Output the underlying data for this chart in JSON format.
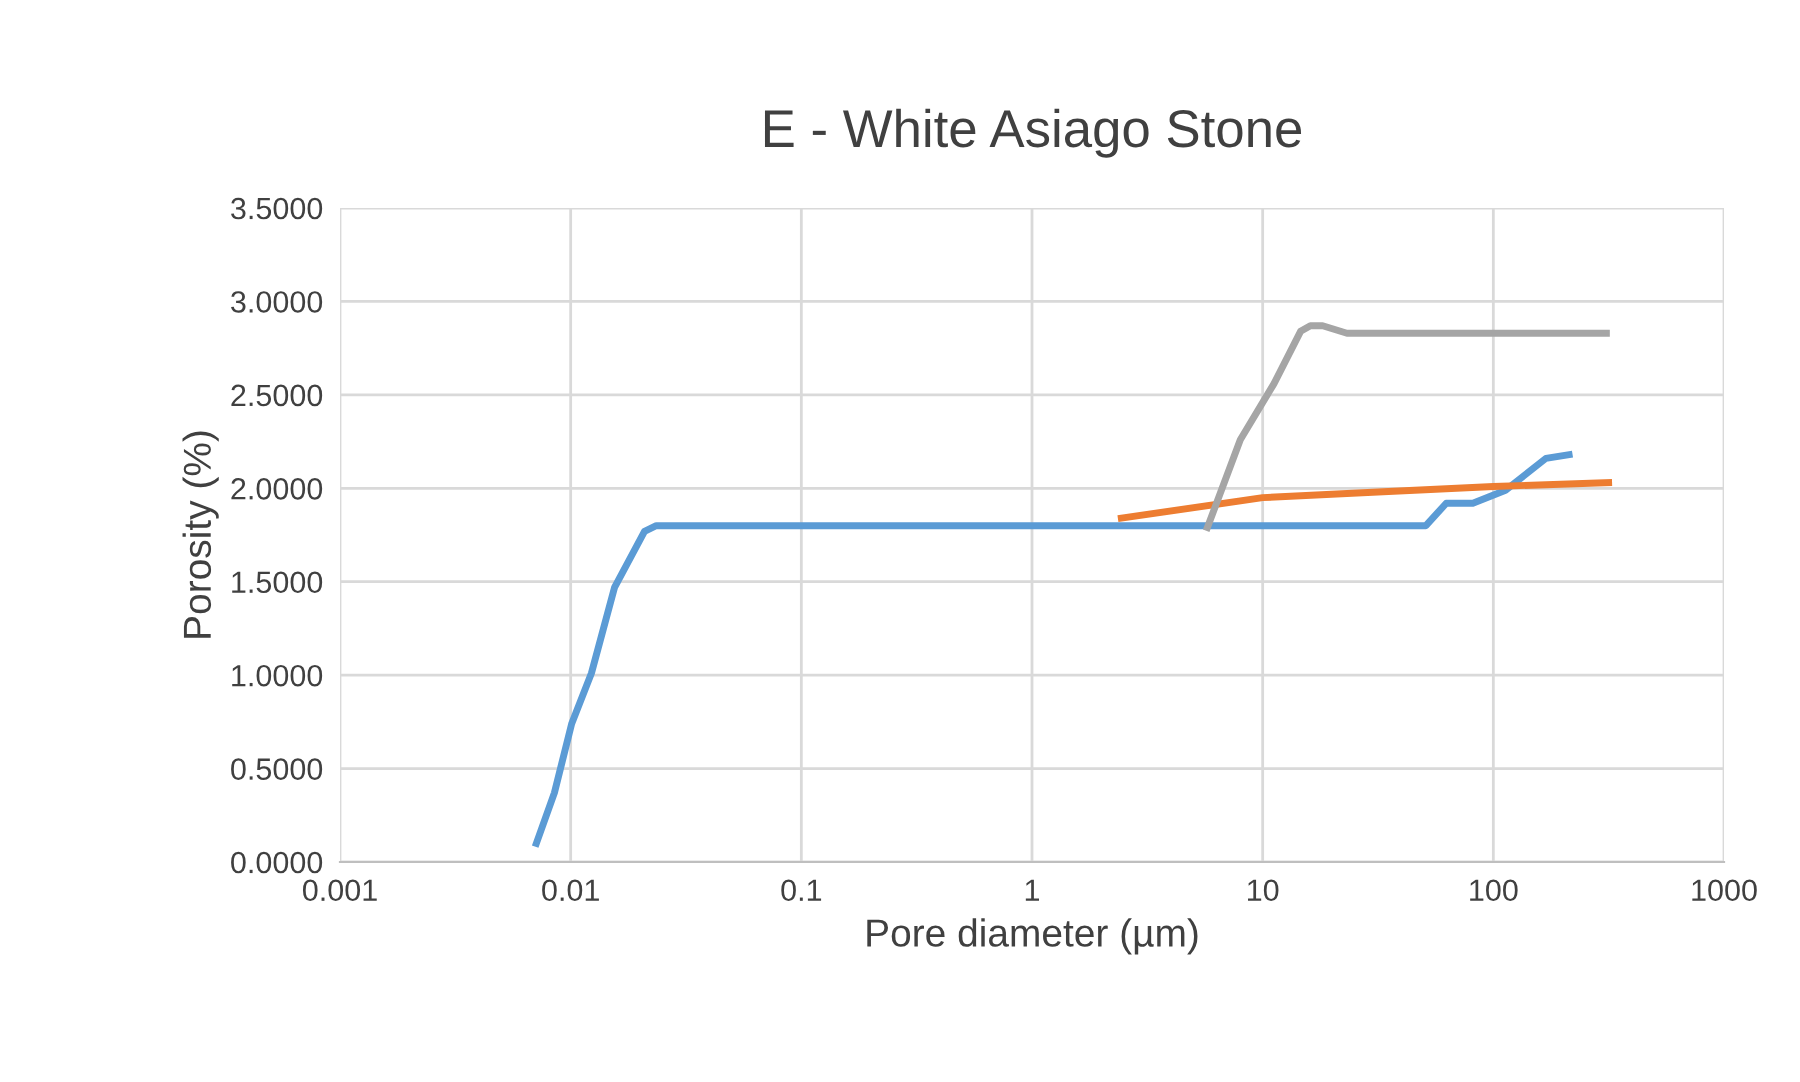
{
  "chart_data": {
    "type": "line",
    "title": "E - White Asiago Stone",
    "xlabel": "Pore diameter (µm)",
    "ylabel": "Porosity (%)",
    "log": "x",
    "xlim": [
      0.001,
      1000
    ],
    "xticks": [
      0.001,
      0.01,
      0.1,
      1,
      10,
      100,
      1000
    ],
    "ylim": [
      0,
      3.5
    ],
    "yticks": [
      {
        "value": 0,
        "label": "0.0000"
      },
      {
        "value": 0.5,
        "label": "0.5000"
      },
      {
        "value": 1,
        "label": "1.0000"
      },
      {
        "value": 1.5,
        "label": "1.5000"
      },
      {
        "value": 2,
        "label": "2.0000"
      },
      {
        "value": 2.5,
        "label": "2.5000"
      },
      {
        "value": 3,
        "label": "3.0000"
      },
      {
        "value": 3.5,
        "label": "3.5000"
      }
    ],
    "grid": true,
    "marker": "none",
    "line_style": "solid",
    "series": [
      {
        "color": "#5b9bd5",
        "x": [
          0.0071,
          0.0085,
          0.0101,
          0.0123,
          0.0155,
          0.0209,
          0.0235,
          0.03,
          1,
          51,
          62.5,
          81.5,
          113,
          169,
          213
        ],
        "values": [
          0.1,
          0.37,
          0.74,
          1.01,
          1.47,
          1.77,
          1.8,
          1.8,
          1.8,
          1.8,
          1.92,
          1.92,
          1.99,
          2.16,
          2.18
        ]
      },
      {
        "color": "#ed7d31",
        "x": [
          2.44,
          10,
          31.6,
          100,
          316
        ],
        "values": [
          1.84,
          1.95,
          1.98,
          2.01,
          2.03
        ]
      },
      {
        "color": "#a5a5a5",
        "x": [
          5.76,
          8.0,
          11.2,
          14.6,
          16.1,
          18.2,
          23.2,
          309
        ],
        "values": [
          1.79,
          2.26,
          2.56,
          2.84,
          2.87,
          2.87,
          2.83,
          2.83
        ]
      }
    ]
  }
}
